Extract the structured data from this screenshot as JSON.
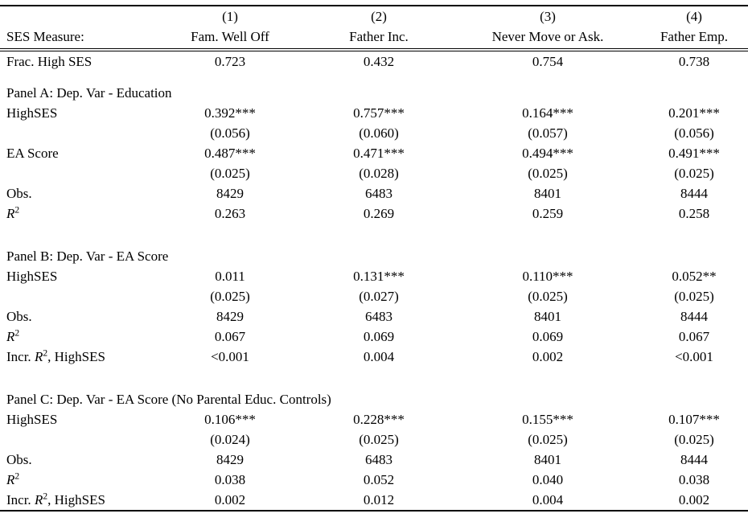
{
  "page": {
    "background": "#ffffff",
    "text_color": "#000000",
    "rule_color": "#000000"
  },
  "table": {
    "header": {
      "numbers": [
        "",
        "(1)",
        "(2)",
        "(3)",
        "(4)"
      ],
      "measures": [
        "SES Measure:",
        "Fam. Well Off",
        "Father Inc.",
        "Never Move or Ask.",
        "Father Emp."
      ]
    },
    "frac_row": {
      "label": "Frac. High SES",
      "values": [
        "0.723",
        "0.432",
        "0.754",
        "0.738"
      ]
    },
    "panels": [
      {
        "title": "Panel A: Dep. Var - Education",
        "rows": [
          {
            "label": "HighSES",
            "values": [
              "0.392***",
              "0.757***",
              "0.164***",
              "0.201***"
            ]
          },
          {
            "label": "",
            "values": [
              "(0.056)",
              "(0.060)",
              "(0.057)",
              "(0.056)"
            ]
          },
          {
            "label": "EA Score",
            "values": [
              "0.487***",
              "0.471***",
              "0.494***",
              "0.491***"
            ]
          },
          {
            "label": "",
            "values": [
              "(0.025)",
              "(0.028)",
              "(0.025)",
              "(0.025)"
            ]
          },
          {
            "label": "Obs.",
            "values": [
              "8429",
              "6483",
              "8401",
              "8444"
            ]
          },
          {
            "label_segments": [
              {
                "t": "R",
                "i": true
              },
              {
                "t": "2",
                "sup": true
              }
            ],
            "values": [
              "0.263",
              "0.269",
              "0.259",
              "0.258"
            ]
          }
        ]
      },
      {
        "title": "Panel B: Dep. Var - EA Score",
        "rows": [
          {
            "label": "HighSES",
            "values": [
              "0.011",
              "0.131***",
              "0.110***",
              "0.052**"
            ]
          },
          {
            "label": "",
            "values": [
              "(0.025)",
              "(0.027)",
              "(0.025)",
              "(0.025)"
            ]
          },
          {
            "label": "Obs.",
            "values": [
              "8429",
              "6483",
              "8401",
              "8444"
            ]
          },
          {
            "label_segments": [
              {
                "t": "R",
                "i": true
              },
              {
                "t": "2",
                "sup": true
              }
            ],
            "values": [
              "0.067",
              "0.069",
              "0.069",
              "0.067"
            ]
          },
          {
            "label_segments": [
              {
                "t": "Incr. "
              },
              {
                "t": "R",
                "i": true
              },
              {
                "t": "2",
                "sup": true
              },
              {
                "t": ", HighSES"
              }
            ],
            "values": [
              "<0.001",
              "0.004",
              "0.002",
              "<0.001"
            ]
          }
        ]
      },
      {
        "title": "Panel C: Dep. Var - EA Score (No Parental Educ. Controls)",
        "rows": [
          {
            "label": "HighSES",
            "values": [
              "0.106***",
              "0.228***",
              "0.155***",
              "0.107***"
            ]
          },
          {
            "label": "",
            "values": [
              "(0.024)",
              "(0.025)",
              "(0.025)",
              "(0.025)"
            ]
          },
          {
            "label": "Obs.",
            "values": [
              "8429",
              "6483",
              "8401",
              "8444"
            ]
          },
          {
            "label_segments": [
              {
                "t": "R",
                "i": true
              },
              {
                "t": "2",
                "sup": true
              }
            ],
            "values": [
              "0.038",
              "0.052",
              "0.040",
              "0.038"
            ]
          },
          {
            "label_segments": [
              {
                "t": "Incr. "
              },
              {
                "t": "R",
                "i": true
              },
              {
                "t": "2",
                "sup": true
              },
              {
                "t": ", HighSES"
              }
            ],
            "values": [
              "0.002",
              "0.012",
              "0.004",
              "0.002"
            ]
          }
        ]
      }
    ]
  }
}
